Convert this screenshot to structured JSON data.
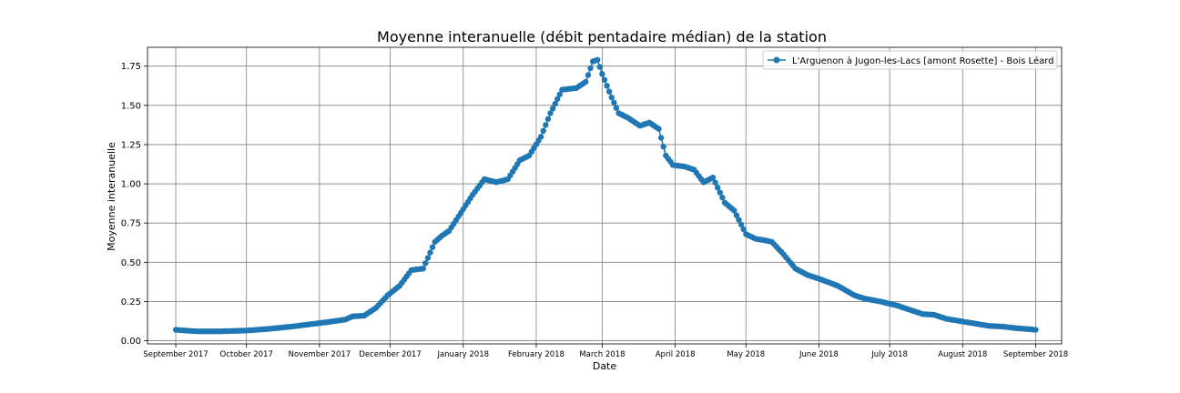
{
  "chart_data": {
    "type": "line",
    "title": "Moyenne interanuelle  (débit pentadaire médian) de la station",
    "xlabel": "Date",
    "ylabel": "Moyenne interanuelle",
    "x_start": "2017-09-01",
    "x_end": "2018-09-01",
    "xlim": [
      "2017-08-20",
      "2018-09-12"
    ],
    "ylim": [
      -0.02,
      1.87
    ],
    "grid": true,
    "legend_position": "upper-right",
    "marker": "circle",
    "x_tick_labels": [
      "September 2017",
      "October 2017",
      "November 2017",
      "December 2017",
      "January 2018",
      "February 2018",
      "March 2018",
      "April 2018",
      "May 2018",
      "June 2018",
      "July 2018",
      "August 2018",
      "September 2018"
    ],
    "x_tick_dates": [
      "2017-09-01",
      "2017-10-01",
      "2017-11-01",
      "2017-12-01",
      "2018-01-01",
      "2018-02-01",
      "2018-03-01",
      "2018-04-01",
      "2018-05-01",
      "2018-06-01",
      "2018-07-01",
      "2018-08-01",
      "2018-09-01"
    ],
    "y_ticks": [
      0.0,
      0.25,
      0.5,
      0.75,
      1.0,
      1.25,
      1.5,
      1.75
    ],
    "y_tick_labels": [
      "0.00",
      "0.25",
      "0.50",
      "0.75",
      "1.00",
      "1.25",
      "1.50",
      "1.75"
    ],
    "series": [
      {
        "name": "L'Arguenon à Jugon-les-Lacs [amont Rosette] - Bois Léard",
        "color": "#1f77b4",
        "points": [
          [
            "2017-09-01",
            0.07
          ],
          [
            "2017-09-05",
            0.065
          ],
          [
            "2017-09-10",
            0.06
          ],
          [
            "2017-09-20",
            0.06
          ],
          [
            "2017-10-01",
            0.065
          ],
          [
            "2017-10-10",
            0.075
          ],
          [
            "2017-10-20",
            0.09
          ],
          [
            "2017-10-28",
            0.105
          ],
          [
            "2017-11-05",
            0.12
          ],
          [
            "2017-11-12",
            0.135
          ],
          [
            "2017-11-15",
            0.155
          ],
          [
            "2017-11-20",
            0.16
          ],
          [
            "2017-11-25",
            0.21
          ],
          [
            "2017-11-30",
            0.29
          ],
          [
            "2017-12-05",
            0.35
          ],
          [
            "2017-12-10",
            0.45
          ],
          [
            "2017-12-15",
            0.46
          ],
          [
            "2017-12-20",
            0.63
          ],
          [
            "2017-12-23",
            0.67
          ],
          [
            "2017-12-26",
            0.7
          ],
          [
            "2018-01-05",
            0.93
          ],
          [
            "2018-01-10",
            1.03
          ],
          [
            "2018-01-15",
            1.01
          ],
          [
            "2018-01-20",
            1.03
          ],
          [
            "2018-01-25",
            1.15
          ],
          [
            "2018-01-29",
            1.18
          ],
          [
            "2018-02-03",
            1.3
          ],
          [
            "2018-02-07",
            1.45
          ],
          [
            "2018-02-12",
            1.6
          ],
          [
            "2018-02-18",
            1.61
          ],
          [
            "2018-02-22",
            1.65
          ],
          [
            "2018-02-25",
            1.78
          ],
          [
            "2018-02-27",
            1.79
          ],
          [
            "2018-03-01",
            1.7
          ],
          [
            "2018-03-05",
            1.55
          ],
          [
            "2018-03-08",
            1.45
          ],
          [
            "2018-03-12",
            1.42
          ],
          [
            "2018-03-17",
            1.37
          ],
          [
            "2018-03-21",
            1.39
          ],
          [
            "2018-03-25",
            1.35
          ],
          [
            "2018-03-28",
            1.18
          ],
          [
            "2018-03-31",
            1.12
          ],
          [
            "2018-04-05",
            1.11
          ],
          [
            "2018-04-09",
            1.09
          ],
          [
            "2018-04-13",
            1.01
          ],
          [
            "2018-04-17",
            1.04
          ],
          [
            "2018-04-22",
            0.88
          ],
          [
            "2018-04-26",
            0.83
          ],
          [
            "2018-05-01",
            0.68
          ],
          [
            "2018-05-05",
            0.65
          ],
          [
            "2018-05-09",
            0.64
          ],
          [
            "2018-05-12",
            0.63
          ],
          [
            "2018-05-17",
            0.55
          ],
          [
            "2018-05-22",
            0.46
          ],
          [
            "2018-05-27",
            0.42
          ],
          [
            "2018-06-02",
            0.39
          ],
          [
            "2018-06-09",
            0.35
          ],
          [
            "2018-06-16",
            0.29
          ],
          [
            "2018-06-20",
            0.27
          ],
          [
            "2018-06-27",
            0.25
          ],
          [
            "2018-07-04",
            0.225
          ],
          [
            "2018-07-10",
            0.195
          ],
          [
            "2018-07-15",
            0.17
          ],
          [
            "2018-07-20",
            0.165
          ],
          [
            "2018-07-25",
            0.14
          ],
          [
            "2018-07-31",
            0.125
          ],
          [
            "2018-08-06",
            0.11
          ],
          [
            "2018-08-12",
            0.095
          ],
          [
            "2018-08-18",
            0.09
          ],
          [
            "2018-08-24",
            0.08
          ],
          [
            "2018-09-01",
            0.07
          ]
        ]
      }
    ]
  }
}
